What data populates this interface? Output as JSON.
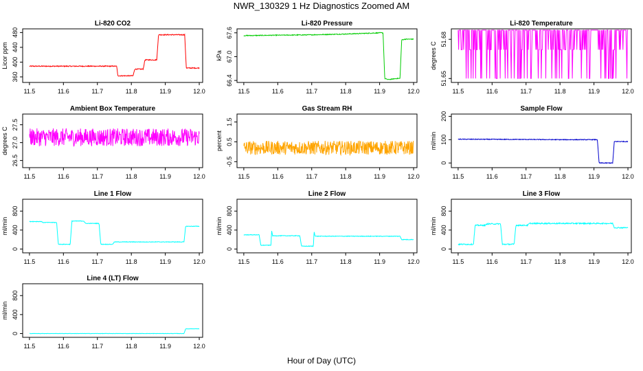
{
  "page": {
    "title": "NWR_130329  1 Hz Diagnostics Zoomed AM",
    "xlabel": "Hour of Day (UTC)"
  },
  "chart_data": [
    {
      "id": "co2",
      "type": "line",
      "title": "Li-820 CO2",
      "ylabel": "Licor ppm",
      "color": "#ff0000",
      "xlim": [
        11.48,
        12.01
      ],
      "ylim": [
        345,
        490
      ],
      "xticks": [
        "11.5",
        "11.6",
        "11.7",
        "11.8",
        "11.9",
        "12.0"
      ],
      "yticks": [
        "360",
        "400",
        "440",
        "480"
      ],
      "noise": 1.2,
      "x": [
        11.5,
        11.757,
        11.76,
        11.805,
        11.81,
        11.835,
        11.84,
        11.875,
        11.88,
        11.957,
        11.962,
        12.0
      ],
      "y": [
        389,
        389,
        363,
        363,
        381,
        381,
        406,
        406,
        474,
        474,
        384,
        384
      ]
    },
    {
      "id": "pressure",
      "type": "line",
      "title": "Li-820 Pressure",
      "ylabel": "kPa",
      "color": "#00cc00",
      "xlim": [
        11.48,
        12.01
      ],
      "ylim": [
        66.35,
        67.7
      ],
      "xticks": [
        "11.5",
        "11.6",
        "11.7",
        "11.8",
        "11.9",
        "12.0"
      ],
      "yticks": [
        "66.4",
        "67.0",
        "67.6"
      ],
      "noise": 0.01,
      "x": [
        11.5,
        11.7,
        11.8,
        11.9,
        11.91,
        11.915,
        11.925,
        11.95,
        11.96,
        11.965,
        11.975,
        12.0
      ],
      "y": [
        67.53,
        67.55,
        67.57,
        67.6,
        67.6,
        66.45,
        66.42,
        66.45,
        66.45,
        67.42,
        67.44,
        67.44
      ]
    },
    {
      "id": "temperature",
      "type": "line",
      "title": "Li-820 Temperature",
      "ylabel": "degrees C",
      "color": "#ff00ff",
      "xlim": [
        11.48,
        12.01
      ],
      "ylim": [
        51.647,
        51.688
      ],
      "xticks": [
        "11.5",
        "11.6",
        "11.7",
        "11.8",
        "11.9",
        "12.0"
      ],
      "yticks": [
        "51.65",
        "51.68"
      ],
      "levels": [
        51.65,
        51.672,
        51.687
      ]
    },
    {
      "id": "ambient",
      "type": "line",
      "title": "Ambient Box Temperature",
      "ylabel": "degrees C",
      "color": "#ff00ff",
      "xlim": [
        11.48,
        12.01
      ],
      "ylim": [
        26.3,
        27.8
      ],
      "xticks": [
        "11.5",
        "11.6",
        "11.7",
        "11.8",
        "11.9",
        "12.0"
      ],
      "yticks": [
        "26.5",
        "27.0",
        "27.5"
      ],
      "noise": 0.25,
      "x": [
        11.5,
        12.0
      ],
      "y": [
        27.15,
        27.15
      ]
    },
    {
      "id": "rh",
      "type": "line",
      "title": "Gas Stream RH",
      "ylabel": "percent",
      "color": "#ffa500",
      "xlim": [
        11.48,
        12.01
      ],
      "ylim": [
        -0.8,
        1.9
      ],
      "xticks": [
        "11.5",
        "11.6",
        "11.7",
        "11.8",
        "11.9",
        "12.0"
      ],
      "yticks": [
        "-0.5",
        "0.5",
        "1.5"
      ],
      "noise": 0.35,
      "x": [
        11.5,
        12.0
      ],
      "y": [
        0.2,
        0.2
      ]
    },
    {
      "id": "sample",
      "type": "line",
      "title": "Sample Flow",
      "ylabel": "ml/min",
      "color": "#0000cc",
      "xlim": [
        11.48,
        12.01
      ],
      "ylim": [
        -20,
        210
      ],
      "xticks": [
        "11.5",
        "11.6",
        "11.7",
        "11.8",
        "11.9",
        "12.0"
      ],
      "yticks": [
        "0",
        "100",
        "200"
      ],
      "noise": 1.5,
      "x": [
        11.5,
        11.7,
        11.8,
        11.91,
        11.915,
        11.955,
        11.96,
        12.0
      ],
      "y": [
        102,
        101,
        100,
        100,
        0,
        0,
        92,
        92
      ]
    },
    {
      "id": "line1",
      "type": "line",
      "title": "Line 1 Flow",
      "ylabel": "ml/min",
      "color": "#00ffff",
      "xlim": [
        11.48,
        12.01
      ],
      "ylim": [
        -80,
        1050
      ],
      "xticks": [
        "11.5",
        "11.6",
        "11.7",
        "11.8",
        "11.9",
        "12.0"
      ],
      "yticks": [
        "0",
        "400",
        "800"
      ],
      "noise": 6,
      "x": [
        11.5,
        11.535,
        11.54,
        11.58,
        11.585,
        11.62,
        11.625,
        11.66,
        11.665,
        11.705,
        11.71,
        11.745,
        11.75,
        11.955,
        11.96,
        12.0
      ],
      "y": [
        580,
        580,
        560,
        560,
        100,
        100,
        590,
        590,
        540,
        540,
        100,
        100,
        150,
        150,
        480,
        480
      ]
    },
    {
      "id": "line2",
      "type": "line",
      "title": "Line 2 Flow",
      "ylabel": "ml/min",
      "color": "#00ffff",
      "xlim": [
        11.48,
        12.01
      ],
      "ylim": [
        -80,
        1050
      ],
      "xticks": [
        "11.5",
        "11.6",
        "11.7",
        "11.8",
        "11.9",
        "12.0"
      ],
      "yticks": [
        "0",
        "400",
        "800"
      ],
      "noise": 6,
      "x": [
        11.5,
        11.545,
        11.55,
        11.58,
        11.582,
        11.585,
        11.665,
        11.67,
        11.705,
        11.707,
        11.71,
        11.96,
        11.965,
        12.0
      ],
      "y": [
        300,
        300,
        80,
        80,
        380,
        280,
        280,
        60,
        60,
        380,
        270,
        270,
        200,
        200
      ]
    },
    {
      "id": "line3",
      "type": "line",
      "title": "Line 3 Flow",
      "ylabel": "ml/min",
      "color": "#00ffff",
      "xlim": [
        11.48,
        12.01
      ],
      "ylim": [
        -80,
        1050
      ],
      "xticks": [
        "11.5",
        "11.6",
        "11.7",
        "11.8",
        "11.9",
        "12.0"
      ],
      "yticks": [
        "0",
        "400",
        "800"
      ],
      "noise": 12,
      "x": [
        11.5,
        11.545,
        11.55,
        11.58,
        11.585,
        11.625,
        11.63,
        11.665,
        11.67,
        11.705,
        11.71,
        11.955,
        11.96,
        12.0
      ],
      "y": [
        100,
        100,
        500,
        500,
        530,
        530,
        100,
        100,
        500,
        500,
        540,
        540,
        450,
        450
      ]
    },
    {
      "id": "line4",
      "type": "line",
      "title": "Line 4 (LT) Flow",
      "ylabel": "ml/min",
      "color": "#00ffff",
      "xlim": [
        11.48,
        12.01
      ],
      "ylim": [
        -80,
        1050
      ],
      "xticks": [
        "11.5",
        "11.6",
        "11.7",
        "11.8",
        "11.9",
        "12.0"
      ],
      "yticks": [
        "0",
        "400",
        "800"
      ],
      "noise": 3,
      "x": [
        11.5,
        11.955,
        11.96,
        12.0
      ],
      "y": [
        0,
        0,
        100,
        100
      ]
    }
  ]
}
